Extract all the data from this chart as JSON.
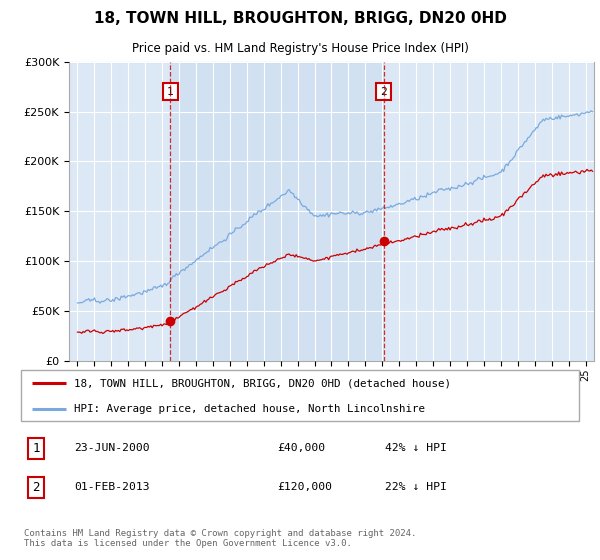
{
  "title": "18, TOWN HILL, BROUGHTON, BRIGG, DN20 0HD",
  "subtitle": "Price paid vs. HM Land Registry's House Price Index (HPI)",
  "plot_bg_color": "#dce8f5",
  "plot_bg_between_color": "#ccddf0",
  "ylim": [
    0,
    300000
  ],
  "yticks": [
    0,
    50000,
    100000,
    150000,
    200000,
    250000,
    300000
  ],
  "ytick_labels": [
    "£0",
    "£50K",
    "£100K",
    "£150K",
    "£200K",
    "£250K",
    "£300K"
  ],
  "sale1_date_year": 2000.48,
  "sale1_price": 40000,
  "sale1_label": "23-JUN-2000",
  "sale1_hpi_pct": "42% ↓ HPI",
  "sale2_date_year": 2013.08,
  "sale2_price": 120000,
  "sale2_label": "01-FEB-2013",
  "sale2_hpi_pct": "22% ↓ HPI",
  "red_color": "#cc0000",
  "blue_color": "#7aaadd",
  "legend_label_red": "18, TOWN HILL, BROUGHTON, BRIGG, DN20 0HD (detached house)",
  "legend_label_blue": "HPI: Average price, detached house, North Lincolnshire",
  "footer": "Contains HM Land Registry data © Crown copyright and database right 2024.\nThis data is licensed under the Open Government Licence v3.0.",
  "xmin": 1994.5,
  "xmax": 2025.5
}
